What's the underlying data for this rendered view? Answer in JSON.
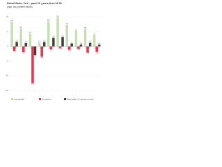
{
  "chart_data": {
    "type": "bar",
    "title": "Retail Sales YoY - past 10 years thru 2015",
    "subtitle": "(high, low, present month)",
    "categories": [
      "2006",
      "2007",
      "2008",
      "2009",
      "2010",
      "2011",
      "2012",
      "2013",
      "2014",
      "2015"
    ],
    "series": [
      {
        "name": "Annual high",
        "color": "#c6e0b4",
        "values": [
          8.4,
          6.1,
          4.2,
          1.2,
          8.5,
          9.8,
          7.3,
          5.1,
          5.9,
          4.0
        ]
      },
      {
        "name": "Annual low",
        "color": "#e8344a",
        "values": [
          -1.5,
          -2.0,
          -12.5,
          -3.5,
          -1.0,
          -0.5,
          -1.2,
          -0.8,
          -2.1,
          -1.9
        ]
      },
      {
        "name": "Retail sales YoY present month",
        "color": "#404040",
        "values": [
          1.5,
          1.1,
          -3.0,
          1.5,
          2.9,
          3.2,
          1.0,
          0.6,
          1.2,
          0.6
        ]
      }
    ],
    "ylim": [
      -15,
      12
    ],
    "yticks": [
      -15,
      -10,
      -5,
      0,
      5,
      10
    ],
    "grid": true
  }
}
